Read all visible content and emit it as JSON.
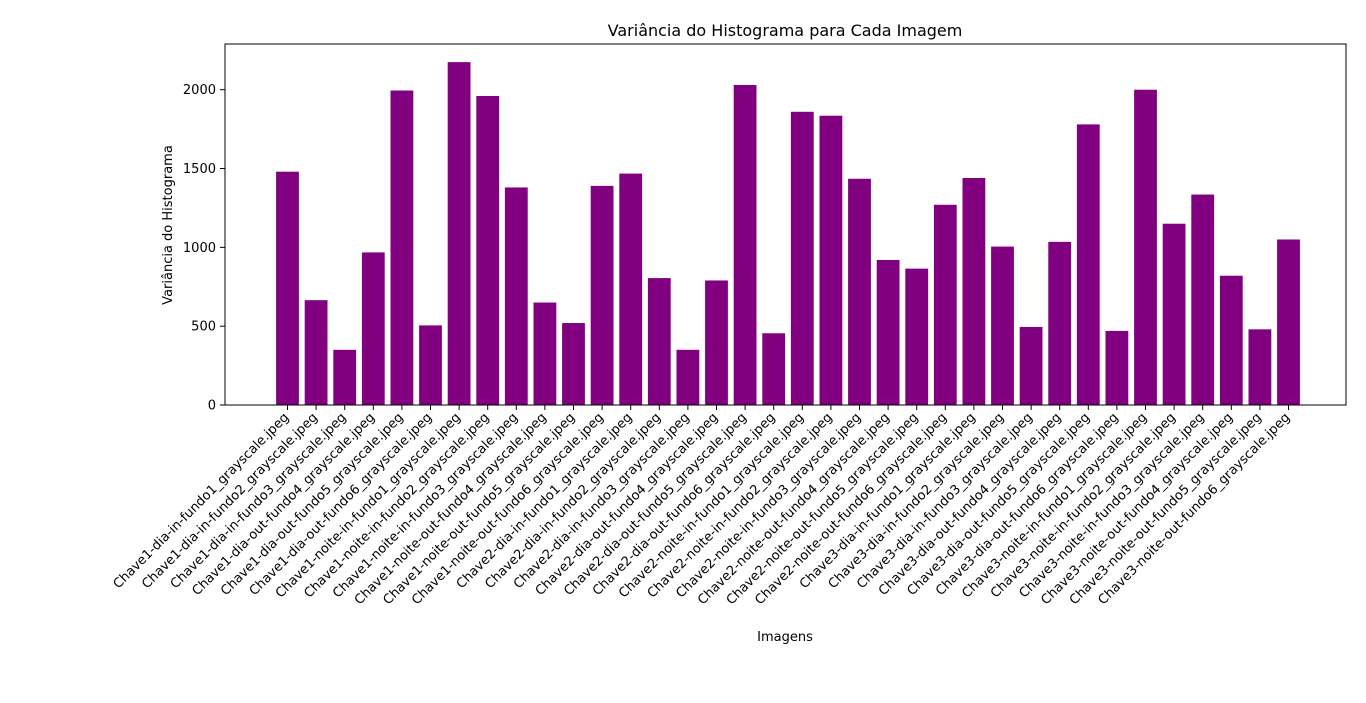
{
  "chart_data": {
    "type": "bar",
    "title": "Variância do Histograma para Cada Imagem",
    "xlabel": "Imagens",
    "ylabel": "Variância do Histograma",
    "ylim": [
      0,
      2290
    ],
    "yticks": [
      0,
      500,
      1000,
      1500,
      2000
    ],
    "grid": false,
    "bar_color": "#800080",
    "categories": [
      "Chave1-dia-in-fundo1_grayscale.jpeg",
      "Chave1-dia-in-fundo2_grayscale.jpeg",
      "Chave1-dia-in-fundo3_grayscale.jpeg",
      "Chave1-dia-out-fundo4_grayscale.jpeg",
      "Chave1-dia-out-fundo5_grayscale.jpeg",
      "Chave1-dia-out-fundo6_grayscale.jpeg",
      "Chave1-noite-in-fundo1_grayscale.jpeg",
      "Chave1-noite-in-fundo2_grayscale.jpeg",
      "Chave1-noite-in-fundo3_grayscale.jpeg",
      "Chave1-noite-out-fundo4_grayscale.jpeg",
      "Chave1-noite-out-fundo5_grayscale.jpeg",
      "Chave1-noite-out-fundo6_grayscale.jpeg",
      "Chave2-dia-in-fundo1_grayscale.jpeg",
      "Chave2-dia-in-fundo2_grayscale.jpeg",
      "Chave2-dia-in-fundo3_grayscale.jpeg",
      "Chave2-dia-out-fundo4_grayscale.jpeg",
      "Chave2-dia-out-fundo5_grayscale.jpeg",
      "Chave2-dia-out-fundo6_grayscale.jpeg",
      "Chave2-noite-in-fundo1_grayscale.jpeg",
      "Chave2-noite-in-fundo2_grayscale.jpeg",
      "Chave2-noite-in-fundo3_grayscale.jpeg",
      "Chave2-noite-out-fundo4_grayscale.jpeg",
      "Chave2-noite-out-fundo5_grayscale.jpeg",
      "Chave2-noite-out-fundo6_grayscale.jpeg",
      "Chave3-dia-in-fundo1_grayscale.jpeg",
      "Chave3-dia-in-fundo2_grayscale.jpeg",
      "Chave3-dia-in-fundo3_grayscale.jpeg",
      "Chave3-dia-out-fundo4_grayscale.jpeg",
      "Chave3-dia-out-fundo5_grayscale.jpeg",
      "Chave3-dia-out-fundo6_grayscale.jpeg",
      "Chave3-noite-in-fundo1_grayscale.jpeg",
      "Chave3-noite-in-fundo2_grayscale.jpeg",
      "Chave3-noite-in-fundo3_grayscale.jpeg",
      "Chave3-noite-out-fundo4_grayscale.jpeg",
      "Chave3-noite-out-fundo5_grayscale.jpeg",
      "Chave3-noite-out-fundo6_grayscale.jpeg"
    ],
    "values": [
      1480,
      665,
      350,
      968,
      1995,
      505,
      2175,
      1960,
      1380,
      650,
      520,
      1390,
      1468,
      805,
      350,
      790,
      2030,
      455,
      1860,
      1835,
      1435,
      920,
      865,
      1270,
      1440,
      1005,
      495,
      1035,
      1780,
      470,
      2000,
      1150,
      1335,
      820,
      480,
      1050
    ]
  }
}
